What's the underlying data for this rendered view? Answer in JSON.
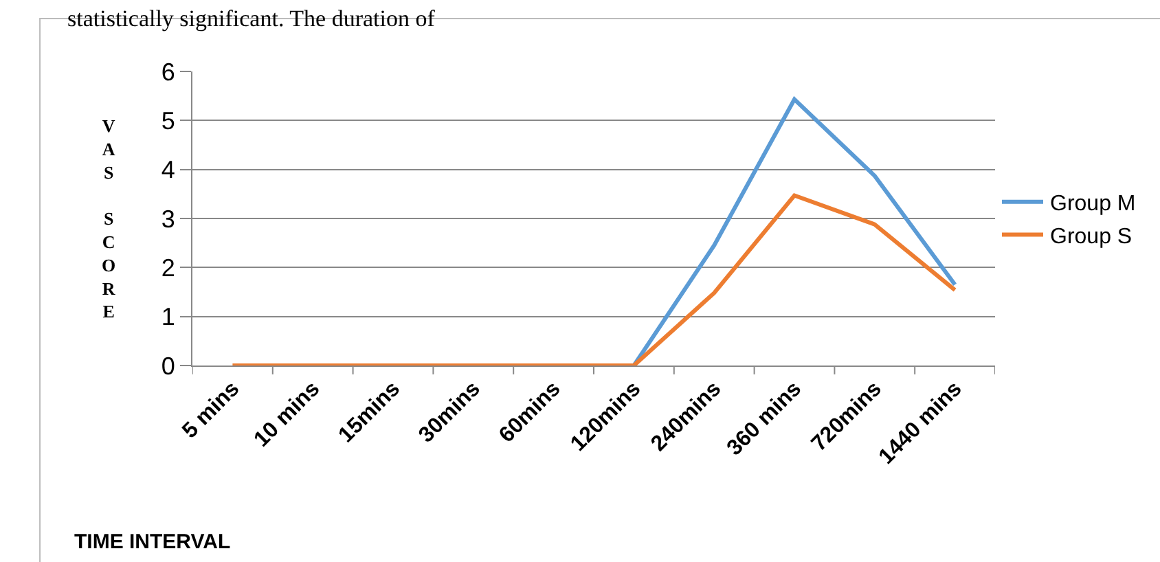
{
  "chart_data": {
    "type": "line",
    "annotations": [
      "statistically significant. The duration of"
    ],
    "xlabel": "TIME INTERVAL",
    "ylabel": "VAS SCORE",
    "categories": [
      "5 mins",
      "10 mins",
      "15mins",
      "30mins",
      "60mins",
      "120mins",
      "240mins",
      "360 mins",
      "720mins",
      "1440 mins"
    ],
    "series": [
      {
        "name": "Group M",
        "color": "#5b9bd5",
        "values": [
          null,
          null,
          null,
          null,
          null,
          0,
          2.45,
          5.43,
          3.87,
          1.65
        ]
      },
      {
        "name": "Group S",
        "color": "#ed7d31",
        "values": [
          0,
          0,
          0,
          0,
          0,
          0,
          1.48,
          3.47,
          2.88,
          1.54
        ]
      }
    ],
    "ylim": [
      0,
      6
    ],
    "yticks": [
      0,
      1,
      2,
      3,
      4,
      5,
      6
    ],
    "grid": "y",
    "legend": "right",
    "marker": "none",
    "line_style": "solid"
  }
}
